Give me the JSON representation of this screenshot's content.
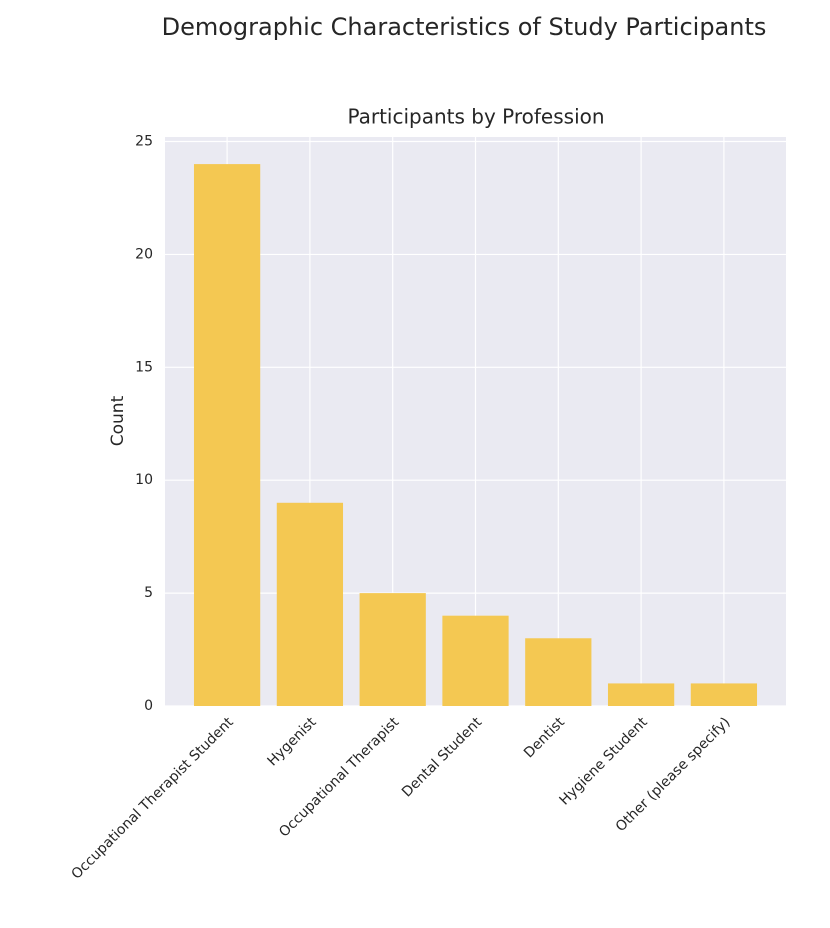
{
  "chart_data": {
    "type": "bar",
    "suptitle": "Demographic Characteristics of Study Participants",
    "title": "Participants by Profession",
    "ylabel": "Count",
    "categories": [
      "Occupational Therapist Student",
      "Hygenist",
      "Occupational Therapist",
      "Dental Student",
      "Dentist",
      "Hygiene Student",
      "Other (please specify)"
    ],
    "values": [
      24,
      9,
      5,
      4,
      3,
      1,
      1
    ],
    "color": "#f4c852",
    "ylim": [
      0,
      25.2
    ],
    "yticks": [
      0,
      5,
      10,
      15,
      20,
      25
    ],
    "grid": true
  }
}
